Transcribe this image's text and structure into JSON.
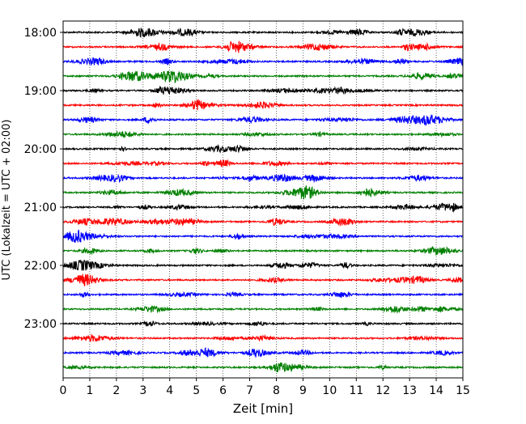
{
  "chart_data": {
    "type": "line",
    "title": "",
    "xlabel": "Zeit  [min]",
    "ylabel": "UTC (Lokalzeit = UTC + 02:00)",
    "xlim": [
      0,
      15
    ],
    "x_ticks": [
      "0",
      "1",
      "2",
      "3",
      "4",
      "5",
      "6",
      "7",
      "8",
      "9",
      "10",
      "11",
      "12",
      "13",
      "14",
      "15"
    ],
    "y_ticks": [
      "18:00",
      "19:00",
      "20:00",
      "21:00",
      "22:00",
      "23:00"
    ],
    "trace_interval_min": 15,
    "first_trace": "18:00",
    "trace_count": 24,
    "trace_colors": [
      "#000000",
      "#ff0000",
      "#0000ff",
      "#008000"
    ],
    "grid": "vertical dotted lines at each minute",
    "legend": "none"
  }
}
